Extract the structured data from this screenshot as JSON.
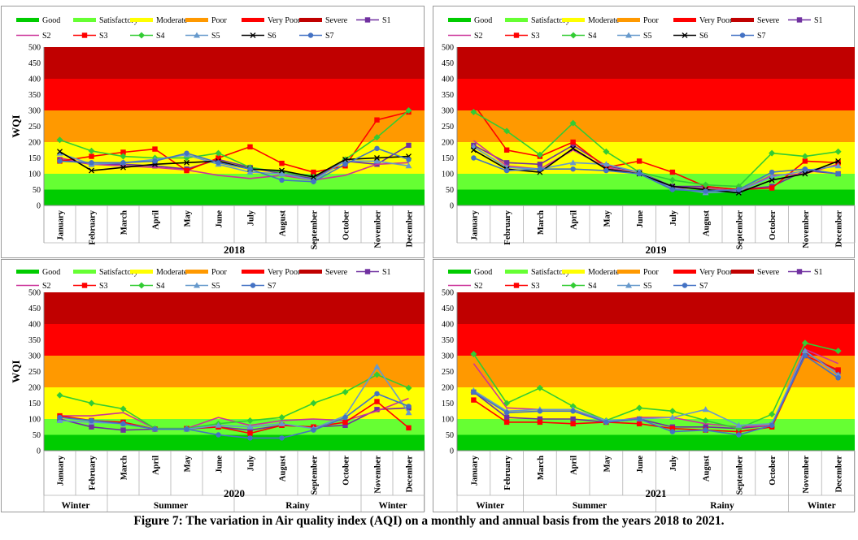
{
  "figure": {
    "caption": "Figure 7: The variation in Air quality index (AQI) on a monthly and annual basis from the years 2018 to 2021."
  },
  "chart_data": [
    {
      "type": "line",
      "year_label": "2018",
      "ylabel": "WQI",
      "ylim": [
        0,
        500
      ],
      "yticks": [
        0,
        50,
        100,
        150,
        200,
        250,
        300,
        350,
        400,
        450,
        500
      ],
      "categories": [
        "January",
        "February",
        "March",
        "April",
        "May",
        "June",
        "July",
        "August",
        "September",
        "October",
        "November",
        "December"
      ],
      "seasons": [],
      "bands": [
        {
          "name": "Good",
          "range": [
            0,
            50
          ],
          "color": "#00cc00"
        },
        {
          "name": "Satisfactory",
          "range": [
            50,
            100
          ],
          "color": "#66ff33"
        },
        {
          "name": "Moderate",
          "range": [
            100,
            200
          ],
          "color": "#ffff00"
        },
        {
          "name": "Poor",
          "range": [
            200,
            300
          ],
          "color": "#ff9900"
        },
        {
          "name": "Very Poor",
          "range": [
            300,
            400
          ],
          "color": "#ff0000"
        },
        {
          "name": "Severe",
          "range": [
            400,
            500
          ],
          "color": "#c00000"
        }
      ],
      "series": [
        {
          "name": "S1",
          "color": "#7030a0",
          "marker": "square",
          "values": [
            145,
            130,
            130,
            125,
            115,
            145,
            120,
            100,
            85,
            140,
            130,
            190
          ]
        },
        {
          "name": "S2",
          "color": "#cc3399",
          "marker": "none",
          "values": [
            150,
            130,
            125,
            120,
            112,
            95,
            85,
            95,
            80,
            95,
            130,
            135
          ]
        },
        {
          "name": "S3",
          "color": "#ff0000",
          "marker": "square",
          "values": [
            140,
            155,
            168,
            178,
            110,
            150,
            185,
            133,
            105,
            125,
            270,
            295
          ]
        },
        {
          "name": "S4",
          "color": "#33cc33",
          "marker": "diamond",
          "values": [
            207,
            172,
            155,
            150,
            150,
            165,
            120,
            105,
            90,
            145,
            215,
            300
          ]
        },
        {
          "name": "S5",
          "color": "#6699cc",
          "marker": "triangle",
          "values": [
            165,
            130,
            135,
            145,
            160,
            130,
            105,
            100,
            80,
            140,
            140,
            125
          ]
        },
        {
          "name": "S6",
          "color": "#000000",
          "marker": "x",
          "values": [
            170,
            110,
            120,
            130,
            135,
            140,
            115,
            110,
            90,
            145,
            150,
            155
          ]
        },
        {
          "name": "S7",
          "color": "#4472c4",
          "marker": "circle",
          "values": [
            140,
            135,
            135,
            140,
            165,
            135,
            115,
            80,
            75,
            130,
            180,
            145
          ]
        }
      ]
    },
    {
      "type": "line",
      "year_label": "2019",
      "ylabel": "",
      "ylim": [
        0,
        500
      ],
      "yticks": [
        0,
        50,
        100,
        150,
        200,
        250,
        300,
        350,
        400,
        450,
        500
      ],
      "categories": [
        "January",
        "February",
        "March",
        "April",
        "May",
        "June",
        "July",
        "August",
        "September",
        "October",
        "November",
        "December"
      ],
      "seasons": [],
      "bands": [
        {
          "name": "Good",
          "range": [
            0,
            50
          ],
          "color": "#00cc00"
        },
        {
          "name": "Satisfactory",
          "range": [
            50,
            100
          ],
          "color": "#66ff33"
        },
        {
          "name": "Moderate",
          "range": [
            100,
            200
          ],
          "color": "#ffff00"
        },
        {
          "name": "Poor",
          "range": [
            200,
            300
          ],
          "color": "#ff9900"
        },
        {
          "name": "Very Poor",
          "range": [
            300,
            400
          ],
          "color": "#ff0000"
        },
        {
          "name": "Severe",
          "range": [
            400,
            500
          ],
          "color": "#c00000"
        }
      ],
      "series": [
        {
          "name": "S1",
          "color": "#7030a0",
          "marker": "square",
          "values": [
            190,
            135,
            130,
            190,
            125,
            105,
            60,
            60,
            50,
            60,
            110,
            100
          ]
        },
        {
          "name": "S2",
          "color": "#cc3399",
          "marker": "none",
          "values": [
            205,
            125,
            115,
            175,
            120,
            100,
            55,
            55,
            45,
            95,
            100,
            130
          ]
        },
        {
          "name": "S3",
          "color": "#ff0000",
          "marker": "square",
          "values": [
            320,
            175,
            155,
            200,
            120,
            140,
            105,
            60,
            50,
            55,
            140,
            135
          ]
        },
        {
          "name": "S4",
          "color": "#33cc33",
          "marker": "diamond",
          "values": [
            295,
            235,
            160,
            260,
            170,
            105,
            80,
            65,
            60,
            165,
            155,
            170
          ]
        },
        {
          "name": "S5",
          "color": "#6699cc",
          "marker": "triangle",
          "values": [
            185,
            120,
            115,
            135,
            130,
            105,
            55,
            40,
            45,
            90,
            110,
            125
          ]
        },
        {
          "name": "S6",
          "color": "#000000",
          "marker": "x",
          "values": [
            175,
            115,
            105,
            180,
            115,
            100,
            60,
            50,
            40,
            80,
            100,
            140
          ]
        },
        {
          "name": "S7",
          "color": "#4472c4",
          "marker": "circle",
          "values": [
            150,
            110,
            115,
            115,
            110,
            100,
            50,
            45,
            50,
            105,
            115,
            100
          ]
        }
      ]
    },
    {
      "type": "line",
      "year_label": "2020",
      "ylabel": "WQI",
      "ylim": [
        0,
        500
      ],
      "yticks": [
        0,
        50,
        100,
        150,
        200,
        250,
        300,
        350,
        400,
        450,
        500
      ],
      "categories": [
        "January",
        "February",
        "March",
        "April",
        "May",
        "June",
        "July",
        "August",
        "September",
        "October",
        "November",
        "December"
      ],
      "seasons": [
        {
          "name": "Winter",
          "start": 0,
          "end": 2
        },
        {
          "name": "Summer",
          "start": 2,
          "end": 6
        },
        {
          "name": "Rainy",
          "start": 6,
          "end": 10
        },
        {
          "name": "Winter",
          "start": 10,
          "end": 12
        }
      ],
      "bands": [
        {
          "name": "Good",
          "range": [
            0,
            50
          ],
          "color": "#00cc00"
        },
        {
          "name": "Satisfactory",
          "range": [
            50,
            100
          ],
          "color": "#66ff33"
        },
        {
          "name": "Moderate",
          "range": [
            100,
            200
          ],
          "color": "#ffff00"
        },
        {
          "name": "Poor",
          "range": [
            200,
            300
          ],
          "color": "#ff9900"
        },
        {
          "name": "Very Poor",
          "range": [
            300,
            400
          ],
          "color": "#ff0000"
        },
        {
          "name": "Severe",
          "range": [
            400,
            500
          ],
          "color": "#c00000"
        }
      ],
      "series": [
        {
          "name": "S1",
          "color": "#7030a0",
          "marker": "square",
          "values": [
            100,
            75,
            65,
            68,
            68,
            75,
            65,
            80,
            75,
            80,
            130,
            135
          ]
        },
        {
          "name": "S2",
          "color": "#cc3399",
          "marker": "none",
          "values": [
            110,
            110,
            120,
            70,
            70,
            105,
            80,
            95,
            100,
            95,
            125,
            165
          ]
        },
        {
          "name": "S3",
          "color": "#ff0000",
          "marker": "square",
          "values": [
            110,
            95,
            90,
            68,
            70,
            75,
            55,
            80,
            75,
            90,
            155,
            72
          ]
        },
        {
          "name": "S4",
          "color": "#33cc33",
          "marker": "diamond",
          "values": [
            175,
            150,
            132,
            70,
            70,
            85,
            95,
            105,
            150,
            185,
            240,
            198
          ]
        },
        {
          "name": "S5",
          "color": "#6699cc",
          "marker": "triangle",
          "values": [
            95,
            90,
            85,
            68,
            68,
            80,
            75,
            85,
            70,
            110,
            265,
            120
          ]
        },
        {
          "name": "S7",
          "color": "#4472c4",
          "marker": "circle",
          "values": [
            105,
            95,
            85,
            68,
            68,
            50,
            40,
            40,
            65,
            105,
            180,
            140
          ]
        }
      ]
    },
    {
      "type": "line",
      "year_label": "2021",
      "ylabel": "",
      "ylim": [
        0,
        500
      ],
      "yticks": [
        0,
        50,
        100,
        150,
        200,
        250,
        300,
        350,
        400,
        450,
        500
      ],
      "categories": [
        "January",
        "February",
        "March",
        "April",
        "May",
        "June",
        "July",
        "August",
        "September",
        "October",
        "November",
        "December"
      ],
      "seasons": [
        {
          "name": "Winter",
          "start": 0,
          "end": 2
        },
        {
          "name": "Summer",
          "start": 2,
          "end": 6
        },
        {
          "name": "Rainy",
          "start": 6,
          "end": 10
        },
        {
          "name": "Winter",
          "start": 10,
          "end": 12
        }
      ],
      "bands": [
        {
          "name": "Good",
          "range": [
            0,
            50
          ],
          "color": "#00cc00"
        },
        {
          "name": "Satisfactory",
          "range": [
            50,
            100
          ],
          "color": "#66ff33"
        },
        {
          "name": "Moderate",
          "range": [
            100,
            200
          ],
          "color": "#ffff00"
        },
        {
          "name": "Poor",
          "range": [
            200,
            300
          ],
          "color": "#ff9900"
        },
        {
          "name": "Very Poor",
          "range": [
            300,
            400
          ],
          "color": "#ff0000"
        },
        {
          "name": "Severe",
          "range": [
            400,
            500
          ],
          "color": "#c00000"
        }
      ],
      "series": [
        {
          "name": "S1",
          "color": "#7030a0",
          "marker": "square",
          "values": [
            185,
            105,
            100,
            100,
            90,
            100,
            75,
            75,
            70,
            80,
            310,
            250
          ]
        },
        {
          "name": "S2",
          "color": "#cc3399",
          "marker": "none",
          "values": [
            275,
            135,
            130,
            130,
            90,
            105,
            105,
            85,
            75,
            80,
            320,
            275
          ]
        },
        {
          "name": "S3",
          "color": "#ff0000",
          "marker": "square",
          "values": [
            160,
            90,
            90,
            85,
            90,
            85,
            70,
            65,
            60,
            75,
            300,
            255
          ]
        },
        {
          "name": "S4",
          "color": "#33cc33",
          "marker": "diamond",
          "values": [
            305,
            150,
            198,
            140,
            95,
            135,
            125,
            95,
            70,
            115,
            340,
            315
          ]
        },
        {
          "name": "S5",
          "color": "#6699cc",
          "marker": "triangle",
          "values": [
            190,
            125,
            130,
            130,
            95,
            100,
            105,
            130,
            80,
            85,
            315,
            240
          ]
        },
        {
          "name": "S7",
          "color": "#4472c4",
          "marker": "circle",
          "values": [
            185,
            120,
            125,
            125,
            90,
            100,
            60,
            65,
            50,
            80,
            300,
            230
          ]
        }
      ]
    }
  ]
}
